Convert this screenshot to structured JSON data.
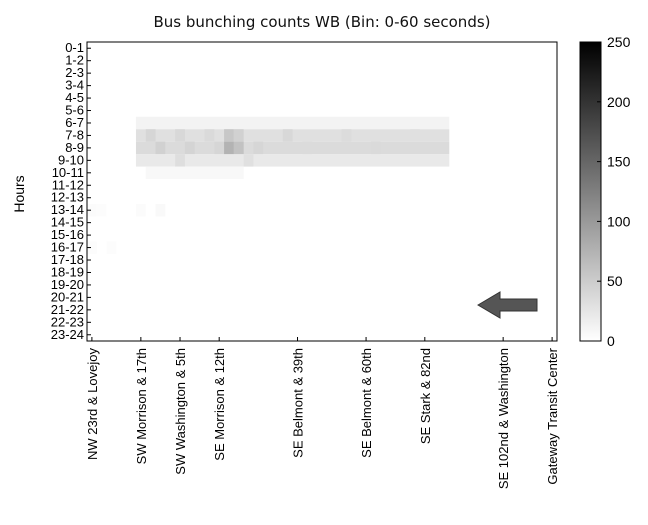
{
  "chart_data": {
    "type": "heatmap",
    "title": "Bus bunching counts WB (Bin: 0-60 seconds)",
    "ylabel": "Hours",
    "xlabel": "",
    "y_categories": [
      "0-1",
      "1-2",
      "2-3",
      "3-4",
      "4-5",
      "5-6",
      "6-7",
      "7-8",
      "8-9",
      "9-10",
      "10-11",
      "11-12",
      "12-13",
      "13-14",
      "14-15",
      "15-16",
      "16-17",
      "17-18",
      "18-19",
      "19-20",
      "20-21",
      "21-22",
      "22-23",
      "23-24"
    ],
    "x_tick_labels": [
      "NW 23rd & Lovejoy",
      "SW Morrison & 17th",
      "SW Washington & 5th",
      "SE Morrison & 12th",
      "SE Belmont & 39th",
      "SE Belmont & 60th",
      "SE Stark & 82nd",
      "SE 102nd & Washington",
      "Gateway Transit Center"
    ],
    "x_tick_positions": [
      0.5,
      5.5,
      9.5,
      13.5,
      21.5,
      28.5,
      34.5,
      42.5,
      47.5
    ],
    "n_columns": 48,
    "colorbar": {
      "min": 0,
      "max": 250,
      "ticks": [
        0,
        50,
        100,
        150,
        200,
        250
      ],
      "colormap": "white-to-black"
    },
    "direction_arrow": "left",
    "cells": [
      {
        "row": 6,
        "col_start": 5,
        "col_end": 37,
        "value": 12
      },
      {
        "row": 7,
        "col_start": 5,
        "col_end": 37,
        "value": 30
      },
      {
        "row": 8,
        "col_start": 5,
        "col_end": 37,
        "value": 35
      },
      {
        "row": 9,
        "col_start": 5,
        "col_end": 37,
        "value": 22
      },
      {
        "row": 10,
        "col_start": 6,
        "col_end": 16,
        "value": 7
      },
      {
        "row": 7,
        "col_start": 6,
        "col_end": 7,
        "value": 40
      },
      {
        "row": 8,
        "col_start": 7,
        "col_end": 8,
        "value": 45
      },
      {
        "row": 7,
        "col_start": 9,
        "col_end": 10,
        "value": 38
      },
      {
        "row": 8,
        "col_start": 10,
        "col_end": 11,
        "value": 42
      },
      {
        "row": 7,
        "col_start": 12,
        "col_end": 13,
        "value": 36
      },
      {
        "row": 8,
        "col_start": 13,
        "col_end": 14,
        "value": 40
      },
      {
        "row": 7,
        "col_start": 14,
        "col_end": 15,
        "value": 55
      },
      {
        "row": 8,
        "col_start": 14,
        "col_end": 15,
        "value": 75
      },
      {
        "row": 7,
        "col_start": 15,
        "col_end": 16,
        "value": 45
      },
      {
        "row": 8,
        "col_start": 15,
        "col_end": 16,
        "value": 60
      },
      {
        "row": 8,
        "col_start": 17,
        "col_end": 18,
        "value": 40
      },
      {
        "row": 7,
        "col_start": 20,
        "col_end": 21,
        "value": 38
      },
      {
        "row": 8,
        "col_start": 22,
        "col_end": 23,
        "value": 35
      },
      {
        "row": 7,
        "col_start": 26,
        "col_end": 27,
        "value": 34
      },
      {
        "row": 8,
        "col_start": 29,
        "col_end": 30,
        "value": 36
      },
      {
        "row": 7,
        "col_start": 33,
        "col_end": 34,
        "value": 30
      },
      {
        "row": 9,
        "col_start": 9,
        "col_end": 10,
        "value": 32
      },
      {
        "row": 9,
        "col_start": 16,
        "col_end": 17,
        "value": 30
      },
      {
        "row": 13,
        "col_start": 0,
        "col_end": 1,
        "value": 4
      },
      {
        "row": 13,
        "col_start": 1,
        "col_end": 2,
        "value": 3
      },
      {
        "row": 13,
        "col_start": 5,
        "col_end": 6,
        "value": 4
      },
      {
        "row": 13,
        "col_start": 7,
        "col_end": 8,
        "value": 6
      },
      {
        "row": 16,
        "col_start": 0,
        "col_end": 1,
        "value": 3
      },
      {
        "row": 16,
        "col_start": 2,
        "col_end": 3,
        "value": 3
      }
    ]
  }
}
